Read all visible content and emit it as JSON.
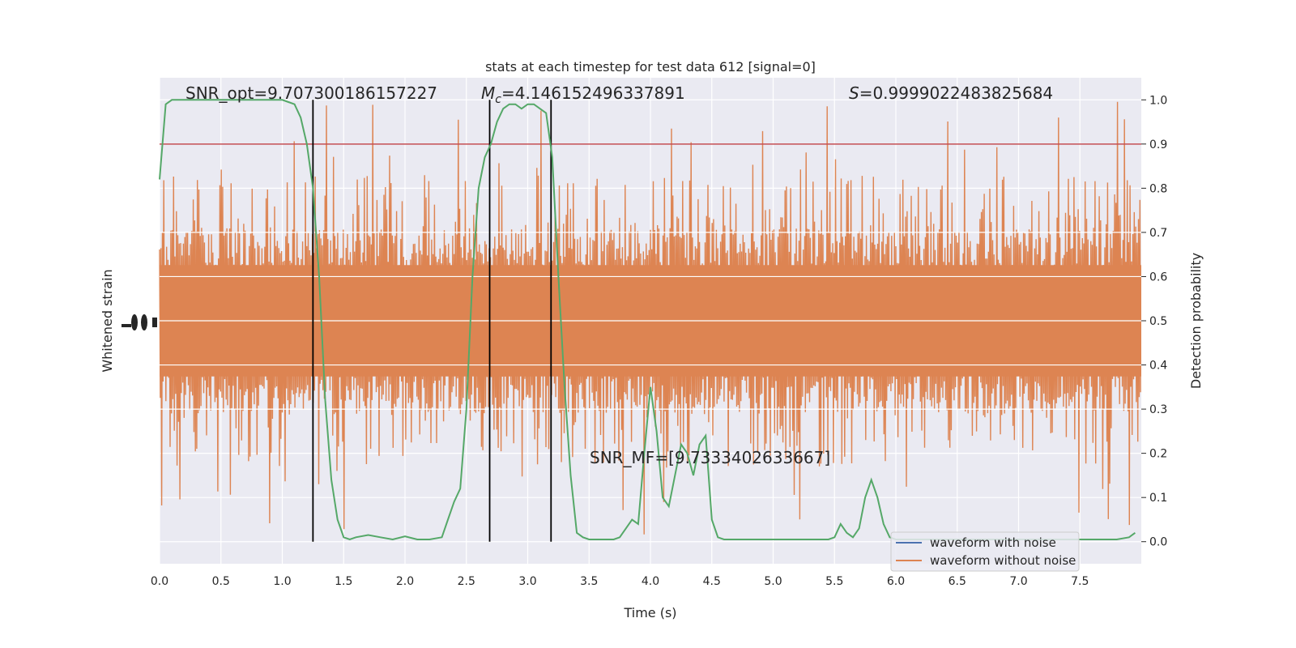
{
  "chart_data": {
    "type": "line",
    "title": "stats at each timestep for test data 612 [signal=0]",
    "xlabel": "Time (s)",
    "ylabel_left": "Whitened strain",
    "ylabel_right": "Detection probability",
    "xlim": [
      0.0,
      8.0
    ],
    "ylim_right": [
      -0.05,
      1.05
    ],
    "xticks": [
      "0.0",
      "0.5",
      "1.0",
      "1.5",
      "2.0",
      "2.5",
      "3.0",
      "3.5",
      "4.0",
      "4.5",
      "5.0",
      "5.5",
      "6.0",
      "6.5",
      "7.0",
      "7.5"
    ],
    "yticks_right": [
      "0.0",
      "0.1",
      "0.2",
      "0.3",
      "0.4",
      "0.5",
      "0.6",
      "0.7",
      "0.8",
      "0.9",
      "1.0"
    ],
    "grid": true,
    "threshold": 0.9,
    "vlines": [
      1.25,
      2.69,
      3.19
    ],
    "annotations": {
      "snr_opt": "SNR_opt=9.707300186157227",
      "mc_symbol": "M",
      "mc_subscript": "c",
      "mc_value": "=4.146152496337891",
      "s_symbol": "S",
      "s_value": "=0.9999022483825684",
      "snr_mf": "SNR_MF=[9.7333402633667]"
    },
    "legend": {
      "position": "lower-right",
      "entries": [
        "waveform with noise",
        "waveform without noise"
      ]
    },
    "series": [
      {
        "name": "waveform without noise",
        "color": "#dd8452",
        "description_kind": "dense-noise",
        "center": 0.5,
        "core_half_width": 0.21,
        "spike_max": 0.5
      },
      {
        "color": "#55a868",
        "x": [
          0.0,
          0.05,
          0.1,
          0.2,
          0.3,
          0.4,
          0.5,
          0.6,
          0.7,
          0.8,
          0.9,
          1.0,
          1.05,
          1.1,
          1.15,
          1.2,
          1.25,
          1.3,
          1.35,
          1.4,
          1.45,
          1.5,
          1.55,
          1.6,
          1.7,
          1.8,
          1.9,
          2.0,
          2.1,
          2.2,
          2.3,
          2.35,
          2.4,
          2.45,
          2.5,
          2.55,
          2.6,
          2.65,
          2.7,
          2.75,
          2.8,
          2.85,
          2.9,
          2.95,
          3.0,
          3.05,
          3.1,
          3.15,
          3.2,
          3.25,
          3.3,
          3.35,
          3.4,
          3.45,
          3.5,
          3.6,
          3.7,
          3.75,
          3.8,
          3.85,
          3.9,
          3.95,
          4.0,
          4.05,
          4.1,
          4.15,
          4.2,
          4.25,
          4.3,
          4.35,
          4.4,
          4.45,
          4.5,
          4.55,
          4.6,
          4.65,
          4.7,
          4.75,
          4.8,
          4.9,
          5.0,
          5.1,
          5.2,
          5.3,
          5.4,
          5.45,
          5.5,
          5.55,
          5.6,
          5.65,
          5.7,
          5.75,
          5.8,
          5.85,
          5.9,
          5.95,
          6.0,
          6.1,
          6.2,
          6.4,
          6.6,
          6.8,
          7.0,
          7.2,
          7.4,
          7.6,
          7.7,
          7.8,
          7.9,
          7.95
        ],
        "y": [
          0.82,
          0.99,
          1.0,
          1.0,
          1.0,
          1.0,
          1.0,
          1.0,
          1.0,
          1.0,
          1.0,
          1.0,
          0.995,
          0.99,
          0.96,
          0.9,
          0.8,
          0.6,
          0.32,
          0.14,
          0.05,
          0.01,
          0.005,
          0.01,
          0.015,
          0.01,
          0.005,
          0.012,
          0.005,
          0.005,
          0.01,
          0.05,
          0.09,
          0.12,
          0.3,
          0.6,
          0.8,
          0.87,
          0.9,
          0.95,
          0.98,
          0.99,
          0.99,
          0.98,
          0.99,
          0.99,
          0.98,
          0.97,
          0.87,
          0.6,
          0.35,
          0.15,
          0.02,
          0.01,
          0.005,
          0.005,
          0.005,
          0.01,
          0.03,
          0.05,
          0.04,
          0.2,
          0.35,
          0.25,
          0.1,
          0.08,
          0.15,
          0.22,
          0.2,
          0.15,
          0.22,
          0.24,
          0.05,
          0.01,
          0.005,
          0.005,
          0.005,
          0.005,
          0.005,
          0.005,
          0.005,
          0.005,
          0.005,
          0.005,
          0.005,
          0.005,
          0.01,
          0.04,
          0.02,
          0.01,
          0.03,
          0.1,
          0.14,
          0.1,
          0.04,
          0.01,
          0.005,
          0.005,
          0.005,
          0.005,
          0.005,
          0.005,
          0.005,
          0.005,
          0.005,
          0.005,
          0.005,
          0.005,
          0.01,
          0.02
        ]
      },
      {
        "color": "#c44e52",
        "type": "hline",
        "y": 0.9
      }
    ],
    "legend_colors": [
      "#4c72b0",
      "#dd8452"
    ]
  }
}
